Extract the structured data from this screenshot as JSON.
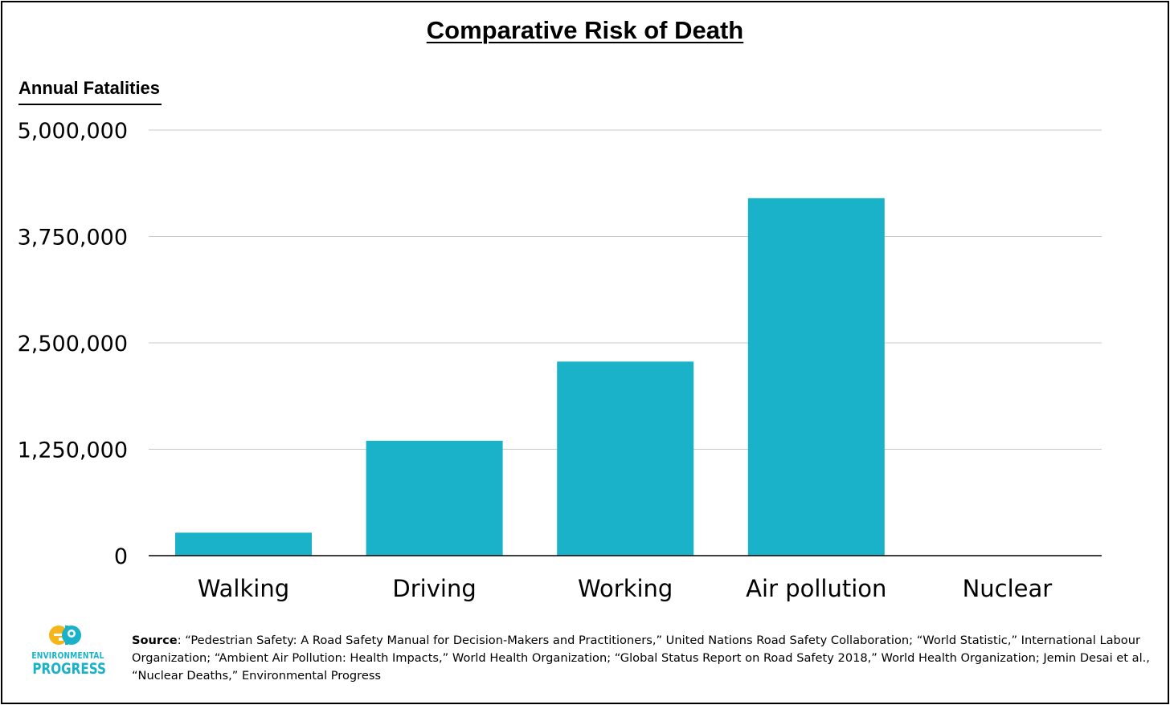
{
  "chart_data": {
    "type": "bar",
    "title": "Comparative Risk of Death",
    "ylabel": "Annual Fatalities",
    "xlabel": "",
    "categories": [
      "Walking",
      "Driving",
      "Working",
      "Air pollution",
      "Nuclear"
    ],
    "values": [
      270000,
      1350000,
      2280000,
      4200000,
      0
    ],
    "ylim": [
      0,
      5000000
    ],
    "yticks": [
      0,
      1250000,
      2500000,
      3750000,
      5000000
    ],
    "ytick_labels": [
      "0",
      "1,250,000",
      "2,500,000",
      "3,750,000",
      "5,000,000"
    ],
    "bar_color": "#1ab2c8",
    "grid": true,
    "legend": "none"
  },
  "source": {
    "label": "Source",
    "text": ": “Pedestrian Safety: A Road Safety Manual for Decision-Makers and Practitioners,” United Nations Road Safety Collaboration; “World Statistic,” International Labour Organization; “Ambient Air Pollution: Health Impacts,” World Health Organization; “Global Status Report on Road Safety 2018,” World Health Organization; Jemin Desai et al., “Nuclear Deaths,” Environmental Progress"
  },
  "logo": {
    "mark": "ep",
    "line1": "ENVIRONMENTAL",
    "line2": "PROGRESS",
    "colors": [
      "#f5b51b",
      "#1ab2c8"
    ]
  }
}
